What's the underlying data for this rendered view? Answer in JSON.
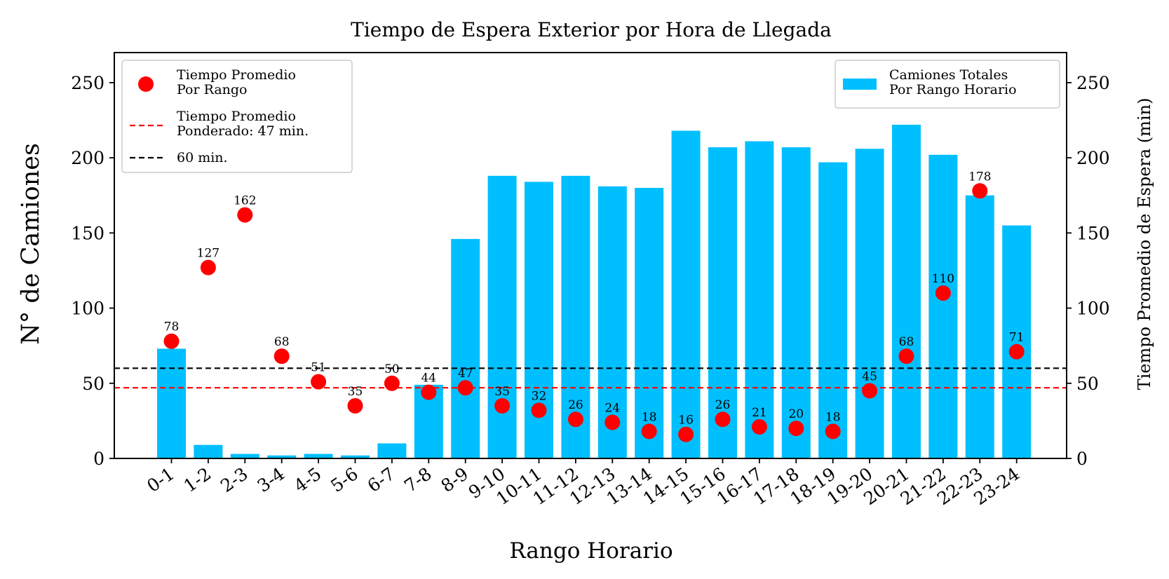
{
  "chart_data": {
    "type": "bar",
    "title": "Tiempo de Espera Exterior por Hora de Llegada",
    "xlabel": "Rango Horario",
    "ylabel": "N° de Camiones",
    "ylabel_right": "Tiempo Promedio de Espera (min)",
    "ylim": [
      0,
      270
    ],
    "ylim_right": [
      0,
      270
    ],
    "yticks": [
      0,
      50,
      100,
      150,
      200,
      250
    ],
    "categories": [
      "0-1",
      "1-2",
      "2-3",
      "3-4",
      "4-5",
      "5-6",
      "6-7",
      "7-8",
      "8-9",
      "9-10",
      "10-11",
      "11-12",
      "12-13",
      "13-14",
      "14-15",
      "15-16",
      "16-17",
      "17-18",
      "18-19",
      "19-20",
      "20-21",
      "21-22",
      "22-23",
      "23-24"
    ],
    "series": [
      {
        "name": "Camiones Totales\nPor Rango Horario",
        "type": "bar",
        "axis": "left",
        "color": "#00bfff",
        "values": [
          73,
          9,
          3,
          2,
          3,
          2,
          10,
          49,
          146,
          188,
          184,
          188,
          181,
          180,
          218,
          207,
          211,
          207,
          197,
          206,
          222,
          202,
          175,
          155
        ]
      },
      {
        "name": "Tiempo Promedio\nPor Rango",
        "type": "scatter",
        "axis": "right",
        "color": "#ff0000",
        "values": [
          78,
          127,
          162,
          68,
          51,
          35,
          50,
          44,
          47,
          35,
          32,
          26,
          24,
          18,
          16,
          26,
          21,
          20,
          18,
          45,
          68,
          110,
          178,
          71
        ]
      }
    ],
    "reference_lines": [
      {
        "name": "Tiempo Promedio\nPonderado: 47 min.",
        "value": 47,
        "color": "#ff0000",
        "style": "dashed"
      },
      {
        "name": "60 min.",
        "value": 60,
        "color": "#000000",
        "style": "dashed"
      }
    ],
    "legend_left_placement": "top-left",
    "legend_right_placement": "top-right",
    "grid": false
  }
}
